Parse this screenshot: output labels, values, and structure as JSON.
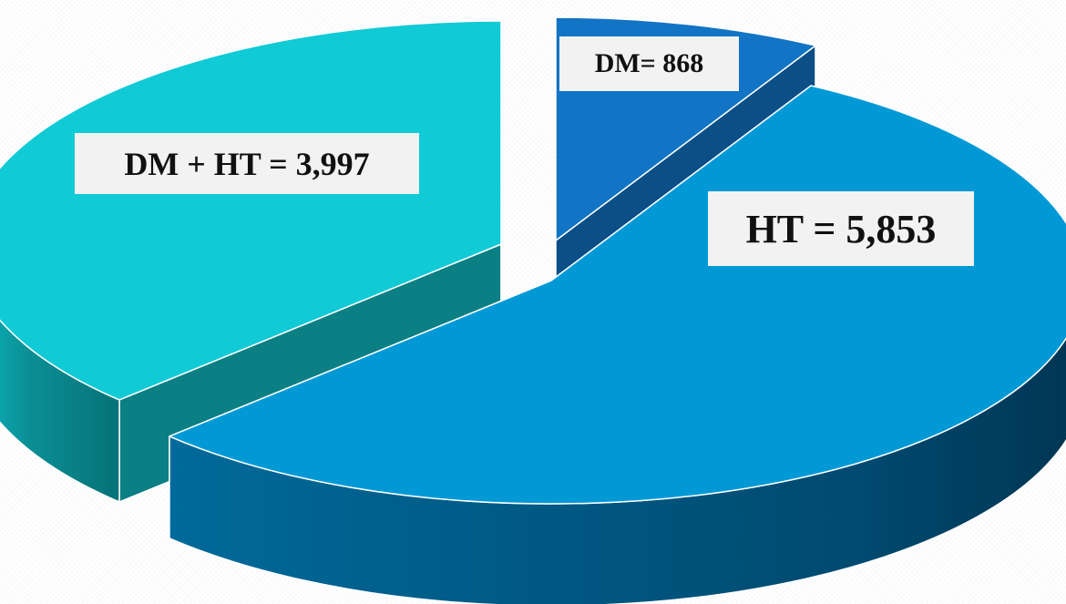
{
  "chart_data": {
    "type": "pie",
    "style": "3d-exploded",
    "slices": [
      {
        "label": "DM",
        "value": 868,
        "label_text": "DM= 868",
        "color_top": "#1274c4",
        "color_side": "#0b4f86"
      },
      {
        "label": "HT",
        "value": 5853,
        "label_text": "HT = 5,853",
        "color_top": "#0099d6",
        "color_side": "#005f8a"
      },
      {
        "label": "DM + HT",
        "value": 3997,
        "label_text": "DM + HT = 3,997",
        "color_top": "#10cad6",
        "color_side": "#0a7f84"
      }
    ],
    "legend": "none",
    "grid": false
  }
}
